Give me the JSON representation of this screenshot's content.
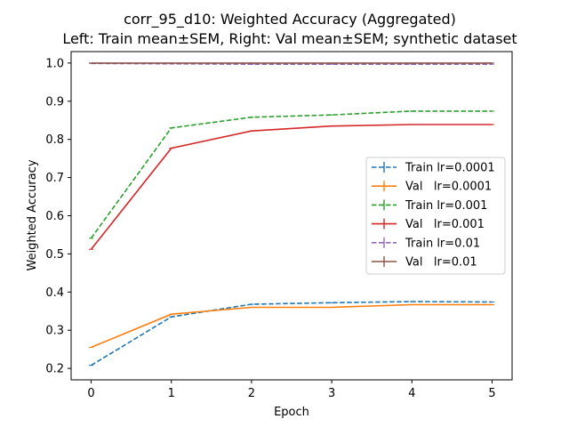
{
  "chart_data": {
    "type": "line",
    "title": "corr_95_d10: Weighted Accuracy (Aggregated)",
    "subtitle": "Left: Train mean±SEM, Right: Val mean±SEM; synthetic dataset",
    "xlabel": "Epoch",
    "ylabel": "Weighted Accuracy",
    "xlim": [
      -0.25,
      5.25
    ],
    "ylim": [
      0.17,
      1.03
    ],
    "xticks": [
      0,
      1,
      2,
      3,
      4,
      5
    ],
    "yticks": [
      0.2,
      0.3,
      0.4,
      0.5,
      0.6,
      0.7,
      0.8,
      0.9,
      1.0
    ],
    "ytick_labels": [
      "0.2",
      "0.3",
      "0.4",
      "0.5",
      "0.6",
      "0.7",
      "0.8",
      "0.9",
      "1.0"
    ],
    "grid": false,
    "legend_position": "center-right",
    "x": [
      0,
      1,
      2,
      3,
      4,
      5
    ],
    "series": [
      {
        "name": "Train lr=0.0001",
        "color": "#1f77b4",
        "dash": "dashed",
        "values": [
          0.208,
          0.335,
          0.368,
          0.372,
          0.375,
          0.374
        ]
      },
      {
        "name": "Val   lr=0.0001",
        "color": "#ff7f0e",
        "dash": "solid",
        "values": [
          0.255,
          0.342,
          0.36,
          0.36,
          0.367,
          0.367
        ]
      },
      {
        "name": "Train lr=0.001",
        "color": "#2ca02c",
        "dash": "dashed",
        "values": [
          0.541,
          0.83,
          0.858,
          0.864,
          0.874,
          0.874
        ]
      },
      {
        "name": "Val   lr=0.001",
        "color": "#d62728",
        "dash": "solid",
        "values": [
          0.512,
          0.777,
          0.822,
          0.835,
          0.839,
          0.839
        ]
      },
      {
        "name": "Train lr=0.01",
        "color": "#9467bd",
        "dash": "dashed",
        "values": [
          0.999,
          0.998,
          0.997,
          0.997,
          0.997,
          0.997
        ]
      },
      {
        "name": "Val   lr=0.01",
        "color": "#8c564b",
        "dash": "solid",
        "values": [
          1.0,
          1.0,
          1.0,
          1.0,
          1.0,
          1.0
        ]
      }
    ]
  }
}
